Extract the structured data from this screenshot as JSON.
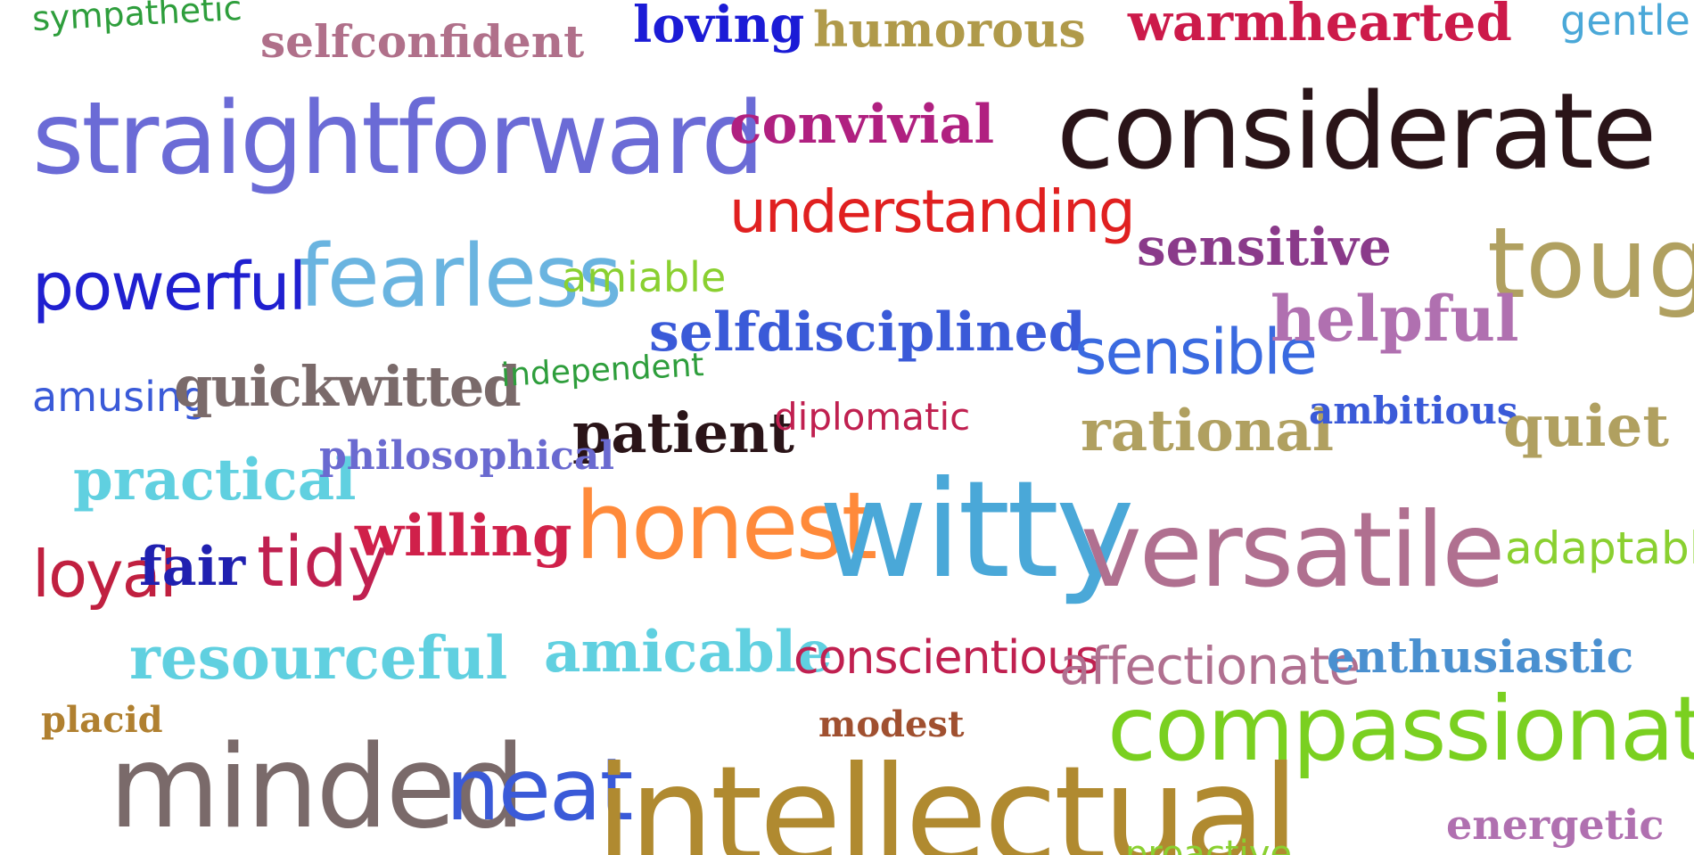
{
  "words": [
    {
      "text": "sympathetic",
      "color": "#2e9e3c",
      "style": "hand"
    },
    {
      "text": "selfconfident",
      "color": "#b0708a",
      "style": "serif"
    },
    {
      "text": "loving",
      "color": "#1b1bd6",
      "style": "serif"
    },
    {
      "text": "humorous",
      "color": "#b09a4a",
      "style": "serif"
    },
    {
      "text": "warmhearted",
      "color": "#cc1a4a",
      "style": "serif"
    },
    {
      "text": "gentle",
      "color": "#4aa8d8",
      "style": "hand"
    },
    {
      "text": "straightforward",
      "color": "#6b6bd6",
      "style": "hand"
    },
    {
      "text": "convivial",
      "color": "#b02080",
      "style": "serif"
    },
    {
      "text": "considerate",
      "color": "#2a1418",
      "style": "hand"
    },
    {
      "text": "understanding",
      "color": "#e02020",
      "style": "hand"
    },
    {
      "text": "sensitive",
      "color": "#8a3a8a",
      "style": "serif"
    },
    {
      "text": "tough",
      "color": "#b0a060",
      "style": "hand"
    },
    {
      "text": "powerful",
      "color": "#2020d0",
      "style": "hand"
    },
    {
      "text": "fearless",
      "color": "#6ab4e0",
      "style": "hand"
    },
    {
      "text": "amiable",
      "color": "#8ad030",
      "style": "hand"
    },
    {
      "text": "selfdisciplined",
      "color": "#3a5ad8",
      "style": "serif"
    },
    {
      "text": "sensible",
      "color": "#3a6ae0",
      "style": "hand"
    },
    {
      "text": "helpful",
      "color": "#b070b0",
      "style": "serif"
    },
    {
      "text": "amusing",
      "color": "#3a5ad8",
      "style": "hand"
    },
    {
      "text": "quickwitted",
      "color": "#7a6a6a",
      "style": "serif"
    },
    {
      "text": "independent",
      "color": "#2e9e3c",
      "style": "hand"
    },
    {
      "text": "patient",
      "color": "#2a1418",
      "style": "serif"
    },
    {
      "text": "diplomatic",
      "color": "#c02050",
      "style": "hand"
    },
    {
      "text": "rational",
      "color": "#b0a060",
      "style": "serif"
    },
    {
      "text": "ambitious",
      "color": "#3a5ad8",
      "style": "serif"
    },
    {
      "text": "quiet",
      "color": "#b0a060",
      "style": "serif"
    },
    {
      "text": "practical",
      "color": "#60d0e0",
      "style": "serif"
    },
    {
      "text": "philosophical",
      "color": "#6a6ad0",
      "style": "serif"
    },
    {
      "text": "willing",
      "color": "#d0204a",
      "style": "serif"
    },
    {
      "text": "honest",
      "color": "#ff8a3a",
      "style": "hand"
    },
    {
      "text": "witty",
      "color": "#4aa8d8",
      "style": "hand"
    },
    {
      "text": "versatile",
      "color": "#b07090",
      "style": "hand"
    },
    {
      "text": "adaptable",
      "color": "#8ad030",
      "style": "hand"
    },
    {
      "text": "loyal",
      "color": "#c02040",
      "style": "hand"
    },
    {
      "text": "fair",
      "color": "#2020b0",
      "style": "serif"
    },
    {
      "text": "tidy",
      "color": "#c02050",
      "style": "hand"
    },
    {
      "text": "resourceful",
      "color": "#60d0e0",
      "style": "serif"
    },
    {
      "text": "amicable",
      "color": "#60d0e0",
      "style": "serif"
    },
    {
      "text": "conscientious",
      "color": "#c02050",
      "style": "hand"
    },
    {
      "text": "affectionate",
      "color": "#b07090",
      "style": "hand"
    },
    {
      "text": "enthusiastic",
      "color": "#4a90d0",
      "style": "serif"
    },
    {
      "text": "placid",
      "color": "#b08030",
      "style": "serif"
    },
    {
      "text": "modest",
      "color": "#a05030",
      "style": "serif"
    },
    {
      "text": "compassionate",
      "color": "#7ad020",
      "style": "hand"
    },
    {
      "text": "minded",
      "color": "#7a6a6a",
      "style": "hand"
    },
    {
      "text": "neat",
      "color": "#3a5ad8",
      "style": "hand"
    },
    {
      "text": "intellectual",
      "color": "#b08a30",
      "style": "hand"
    },
    {
      "text": "energetic",
      "color": "#b070b0",
      "style": "serif"
    },
    {
      "text": "proactive",
      "color": "#8ad030",
      "style": "hand"
    }
  ]
}
